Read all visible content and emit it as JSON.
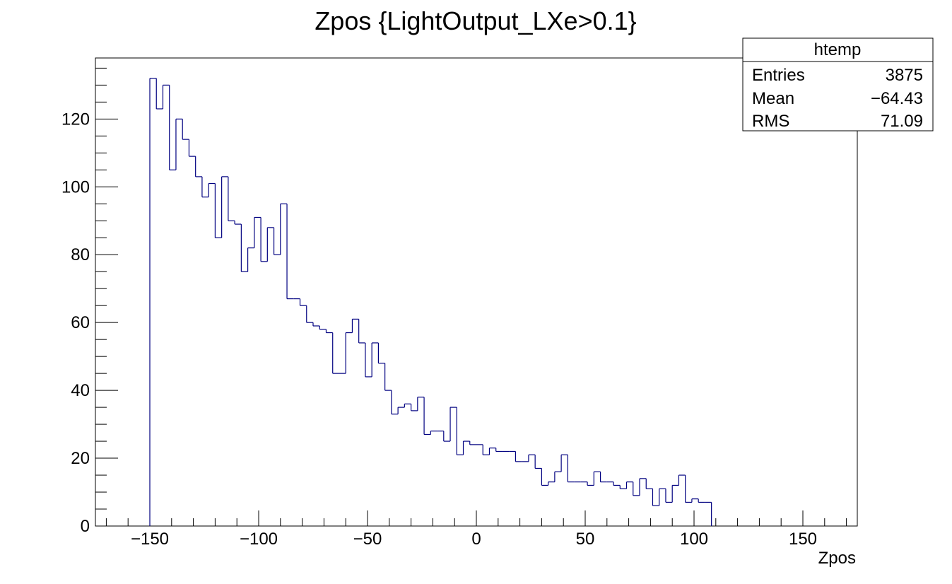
{
  "chart_data": {
    "type": "histogram",
    "title": "Zpos {LightOutput_LXe>0.1}",
    "xlabel": "Zpos",
    "ylabel": "",
    "xlim": [
      -175,
      175
    ],
    "ylim": [
      0,
      138
    ],
    "x_ticks": [
      -150,
      -100,
      -50,
      0,
      50,
      100,
      150
    ],
    "x_tick_labels": [
      "−150",
      "−100",
      "−50",
      "0",
      "50",
      "100",
      "150"
    ],
    "y_ticks": [
      0,
      20,
      40,
      60,
      80,
      100,
      120
    ],
    "y_tick_labels": [
      "0",
      "20",
      "40",
      "60",
      "80",
      "100",
      "120"
    ],
    "grid": false,
    "line_color": "#000080",
    "bin_edges_start": -150,
    "bin_width": 3,
    "counts": [
      132,
      123,
      130,
      105,
      120,
      114,
      109,
      103,
      97,
      101,
      85,
      103,
      90,
      89,
      75,
      82,
      91,
      78,
      88,
      80,
      95,
      67,
      67,
      65,
      60,
      59,
      58,
      57,
      45,
      45,
      57,
      61,
      54,
      44,
      54,
      48,
      40,
      33,
      35,
      36,
      34,
      38,
      27,
      28,
      28,
      25,
      35,
      21,
      25,
      24,
      24,
      21,
      23,
      22,
      22,
      22,
      19,
      19,
      21,
      17,
      12,
      13,
      16,
      21,
      13,
      13,
      13,
      12,
      16,
      13,
      13,
      12,
      11,
      13,
      9,
      14,
      11,
      6,
      11,
      7,
      12,
      15,
      7,
      8,
      7,
      7
    ],
    "stats_box": {
      "name": "htemp",
      "entries_label": "Entries",
      "entries_value": "3875",
      "mean_label": "Mean",
      "mean_value": "−64.43",
      "rms_label": "RMS",
      "rms_value": "71.09"
    }
  }
}
